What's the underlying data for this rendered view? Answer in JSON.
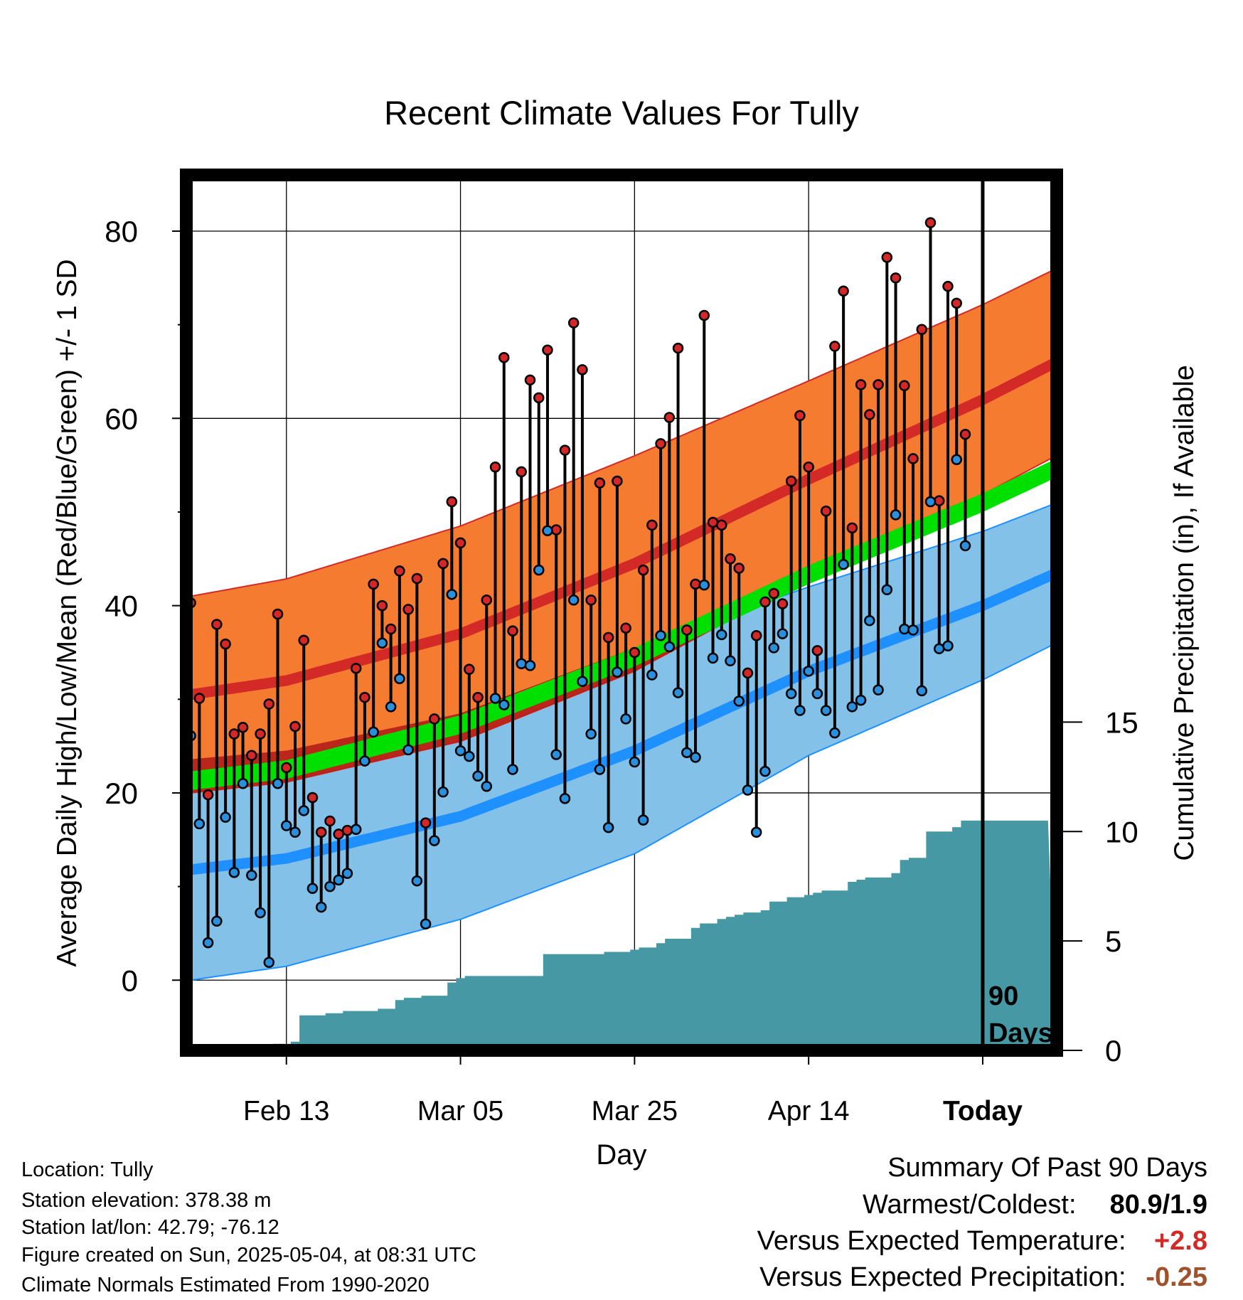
{
  "chart_data": {
    "type": "line",
    "title": "Recent Climate Values For Tully",
    "xlabel": "Day",
    "ylabel": "Average Daily High/Low/Mean (Red/Blue/Green) +/- 1 SD",
    "ylabel_right": "Cumulative Precipitation (in), If Available",
    "x_ticks": [
      {
        "label": "Feb 13",
        "day": 12
      },
      {
        "label": "Mar 05",
        "day": 32
      },
      {
        "label": "Mar 25",
        "day": 52
      },
      {
        "label": "Apr 14",
        "day": 72
      },
      {
        "label": "Today",
        "day": 92
      }
    ],
    "xlim_days": [
      0.5,
      100.5
    ],
    "ylim": [
      -7.5,
      86
    ],
    "y_ticks": [
      0,
      20,
      40,
      60,
      80
    ],
    "y2_ticks": [
      0,
      5,
      10,
      15
    ],
    "y2lim": [
      0,
      40
    ],
    "today_marker": "90\nDays",
    "grid": true,
    "normals": {
      "high_mean": [
        [
          1,
          30.5
        ],
        [
          12,
          32.0
        ],
        [
          32,
          37.0
        ],
        [
          52,
          44.5
        ],
        [
          72,
          53.5
        ],
        [
          92,
          62.0
        ],
        [
          100,
          65.8
        ]
      ],
      "high_sd": [
        [
          1,
          10.5
        ],
        [
          32,
          11.5
        ],
        [
          52,
          11.5
        ],
        [
          72,
          10.5
        ],
        [
          100,
          10.0
        ]
      ],
      "low_mean": [
        [
          1,
          11.8
        ],
        [
          12,
          13.0
        ],
        [
          32,
          17.5
        ],
        [
          52,
          24.5
        ],
        [
          72,
          33.0
        ],
        [
          92,
          40.0
        ],
        [
          100,
          43.3
        ]
      ],
      "low_sd": [
        [
          1,
          11.8
        ],
        [
          32,
          11.0
        ],
        [
          52,
          11.0
        ],
        [
          72,
          9.0
        ],
        [
          100,
          7.5
        ]
      ],
      "avg_mean": [
        [
          1,
          21.3
        ],
        [
          12,
          22.5
        ],
        [
          32,
          27.3
        ],
        [
          52,
          34.5
        ],
        [
          72,
          43.3
        ],
        [
          92,
          51.0
        ],
        [
          100,
          54.5
        ]
      ],
      "avg_sd": [
        [
          1,
          1.0
        ],
        [
          100,
          1.0
        ]
      ]
    },
    "series": [
      {
        "name": "High",
        "values": [
          40.3,
          30.1,
          19.8,
          38.0,
          35.9,
          26.3,
          27.0,
          24.0,
          26.3,
          29.5,
          39.1,
          22.7,
          27.1,
          36.3,
          19.5,
          15.8,
          17.0,
          15.6,
          16.0,
          33.3,
          30.2,
          42.3,
          40.0,
          37.5,
          43.7,
          39.6,
          42.9,
          16.8,
          27.9,
          44.5,
          51.1,
          46.7,
          33.2,
          30.2,
          40.6,
          54.8,
          66.5,
          37.3,
          54.3,
          64.1,
          62.2,
          67.3,
          48.1,
          56.6,
          70.2,
          65.2,
          40.6,
          53.1,
          36.6,
          53.3,
          37.6,
          35.0,
          43.8,
          48.6,
          57.3,
          60.1,
          67.5,
          37.4,
          42.3,
          71.0,
          48.9,
          48.6,
          45.0,
          44.0,
          32.8,
          36.8,
          40.4,
          41.3,
          40.2,
          53.3,
          60.3,
          54.8,
          35.2,
          50.1,
          67.7,
          73.6,
          48.3,
          63.6,
          60.4,
          63.6,
          77.2,
          75.0,
          63.5,
          55.7,
          69.5,
          80.9,
          51.2,
          74.1,
          72.3,
          58.3
        ]
      },
      {
        "name": "Low",
        "values": [
          26.1,
          16.7,
          4.0,
          6.3,
          17.4,
          11.5,
          21.0,
          11.2,
          7.2,
          1.9,
          21.0,
          16.5,
          15.8,
          18.1,
          9.8,
          7.8,
          10.0,
          10.7,
          11.4,
          16.1,
          23.4,
          26.5,
          36.0,
          29.2,
          32.2,
          24.6,
          10.6,
          6.0,
          14.9,
          20.1,
          41.2,
          24.5,
          23.9,
          21.8,
          20.7,
          30.1,
          29.4,
          22.5,
          33.8,
          33.6,
          43.8,
          48.0,
          24.1,
          19.4,
          40.6,
          31.9,
          26.3,
          22.5,
          16.3,
          32.9,
          27.9,
          23.3,
          17.1,
          32.6,
          36.8,
          35.6,
          30.7,
          24.3,
          23.8,
          42.2,
          34.4,
          36.9,
          34.1,
          29.8,
          20.3,
          15.8,
          22.3,
          35.5,
          37.0,
          30.6,
          28.8,
          33.0,
          30.6,
          28.8,
          26.4,
          44.4,
          29.2,
          29.9,
          38.4,
          31.0,
          41.7,
          49.7,
          37.5,
          37.4,
          30.9,
          51.1,
          35.4,
          35.7,
          55.6,
          46.4
        ]
      },
      {
        "name": "Cumulative Precipitation",
        "values": [
          0.0,
          0.0,
          0.0,
          0.0,
          0.0,
          0.1,
          0.1,
          0.1,
          0.1,
          0.2,
          0.3,
          0.3,
          0.4,
          1.6,
          1.6,
          1.6,
          1.7,
          1.7,
          1.8,
          1.8,
          1.8,
          1.8,
          1.9,
          1.9,
          2.3,
          2.4,
          2.4,
          2.5,
          2.5,
          2.5,
          3.1,
          3.3,
          3.4,
          3.4,
          3.4,
          3.4,
          3.4,
          3.4,
          3.4,
          3.4,
          3.4,
          4.4,
          4.4,
          4.4,
          4.4,
          4.4,
          4.4,
          4.4,
          4.5,
          4.5,
          4.5,
          4.6,
          4.7,
          4.7,
          4.9,
          5.1,
          5.1,
          5.1,
          5.6,
          5.8,
          5.8,
          6.0,
          6.1,
          6.2,
          6.3,
          6.3,
          6.4,
          6.8,
          6.8,
          7.0,
          7.0,
          7.1,
          7.2,
          7.3,
          7.3,
          7.3,
          7.7,
          7.8,
          7.9,
          7.9,
          7.9,
          8.1,
          8.7,
          8.8,
          8.8,
          10.0,
          10.0,
          10.0,
          10.2,
          10.5,
          10.5,
          10.5,
          10.5,
          10.5,
          10.5,
          10.5,
          10.5,
          10.5,
          10.5
        ]
      }
    ],
    "colors": {
      "high_band": "#f47b30",
      "high_line": "#d42a27",
      "low_band": "#83c1e8",
      "low_line": "#1e90ff",
      "avg_band": "#00e000",
      "precip": "#4699a4",
      "high_dot": "#d62728",
      "low_dot": "#2a8fdc",
      "band_overlap": "#b01818"
    }
  },
  "info": {
    "location": "Location: Tully",
    "elevation": "Station elevation: 378.38 m",
    "latlon": "Station lat/lon: 42.79; -76.12",
    "created": "Figure created on Sun, 2025-05-04, at 08:31 UTC",
    "normals": "Climate Normals Estimated From 1990-2020"
  },
  "summary": {
    "title": "Summary Of Past 90 Days",
    "warm_cold_label": "Warmest/Coldest:",
    "warm_cold_value": "80.9/1.9",
    "temp_label": "Versus Expected Temperature:",
    "temp_value": "+2.8",
    "temp_color": "#d42a27",
    "precip_label": "Versus Expected Precipitation:",
    "precip_value": "-0.25",
    "precip_color": "#a0522d"
  }
}
